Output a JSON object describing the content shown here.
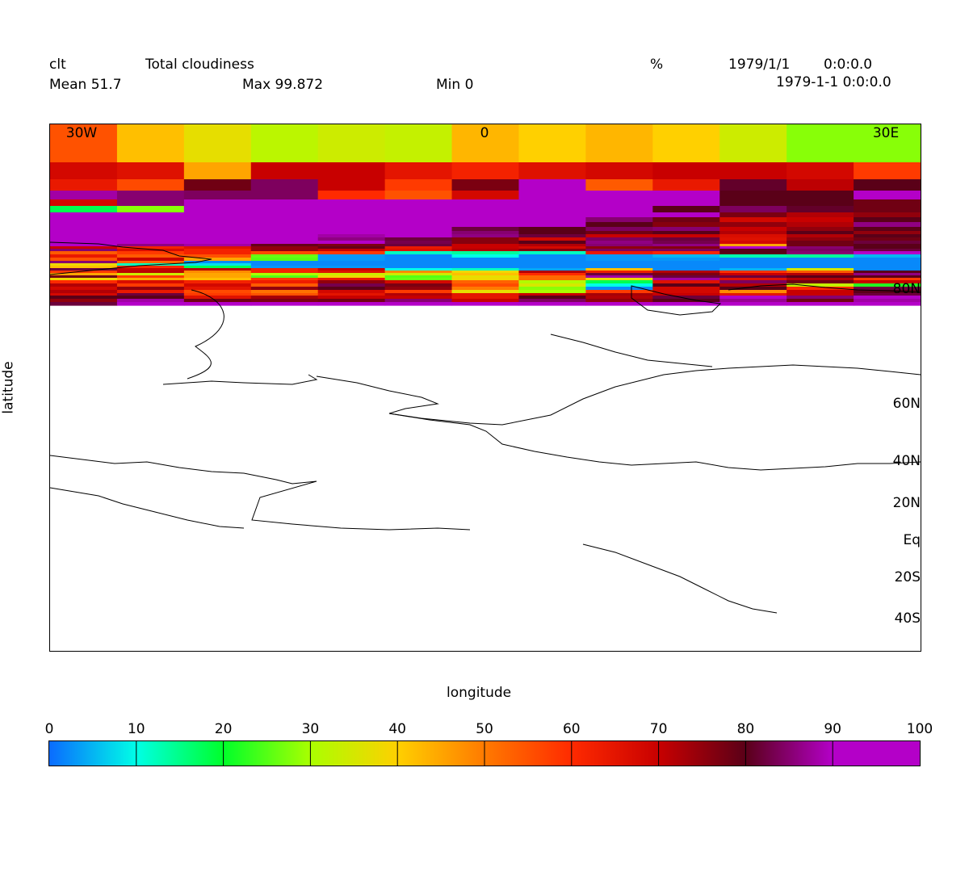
{
  "header": {
    "var_name": "clt",
    "long_name": "Total cloudiness",
    "units": "%",
    "date1": "1979/1/1",
    "time1": "0:0:0.0",
    "date2": "1979-1-1 0:0:0.0",
    "mean": "Mean 51.7",
    "max": "Max 99.872",
    "min": "Min 0"
  },
  "chart_data": {
    "type": "heatmap",
    "xlabel": "longitude",
    "ylabel": "latitude",
    "x_ticks": [
      "30W",
      "0",
      "30E"
    ],
    "y_ticks": [
      "80N",
      "60N",
      "40N",
      "20N",
      "Eq",
      "20S",
      "40S"
    ],
    "colorbar_ticks": [
      "0",
      "10",
      "20",
      "30",
      "40",
      "50",
      "60",
      "70",
      "80",
      "90",
      "100"
    ],
    "colorbar_range": [
      0,
      100
    ],
    "colors": [
      "#0a6bff",
      "#00ffe6",
      "#00ff2a",
      "#aaff00",
      "#ffd000",
      "#ff7a00",
      "#ff2a00",
      "#c80000",
      "#5a0018",
      "#b400c8"
    ],
    "columns": 13,
    "row_heights": [
      47,
      21,
      14,
      11,
      8,
      8,
      6,
      6,
      6,
      5,
      4,
      4,
      4,
      4,
      3,
      3,
      3,
      4,
      4,
      4,
      3,
      3,
      3,
      3,
      3,
      3,
      3,
      3,
      4,
      4,
      4,
      4,
      3,
      4,
      4,
      4
    ],
    "rows": [
      [
        55,
        42,
        37,
        32,
        34,
        33,
        43,
        40,
        43,
        40,
        34,
        28,
        28
      ],
      [
        68,
        66,
        45,
        70,
        70,
        65,
        62,
        66,
        68,
        70,
        70,
        68,
        58
      ],
      [
        64,
        56,
        78,
        84,
        70,
        58,
        77,
        97,
        54,
        64,
        81,
        71,
        80
      ],
      [
        88,
        85,
        84,
        84,
        60,
        55,
        68,
        98,
        97,
        98,
        80,
        80,
        96
      ],
      [
        68,
        85,
        97,
        93,
        97,
        97,
        98,
        98,
        97,
        97,
        80,
        80,
        78
      ],
      [
        18,
        28,
        96,
        97,
        97,
        96,
        97,
        97,
        90,
        80,
        84,
        81,
        78
      ],
      [
        98,
        97,
        96,
        97,
        96,
        98,
        96,
        98,
        97,
        98,
        77,
        72,
        75
      ],
      [
        98,
        97,
        96,
        97,
        96,
        95,
        96,
        98,
        85,
        78,
        68,
        70,
        80
      ],
      [
        97,
        96,
        96,
        95,
        93,
        95,
        96,
        96,
        80,
        76,
        75,
        72,
        86
      ],
      [
        97,
        96,
        95,
        93,
        95,
        95,
        82,
        80,
        84,
        85,
        70,
        75,
        80
      ],
      [
        98,
        95,
        95,
        93,
        93,
        95,
        85,
        80,
        78,
        80,
        72,
        80,
        75
      ],
      [
        95,
        95,
        93,
        92,
        88,
        92,
        86,
        82,
        70,
        70,
        67,
        72,
        80
      ],
      [
        96,
        93,
        95,
        94,
        86,
        82,
        76,
        68,
        84,
        82,
        66,
        75,
        78
      ],
      [
        93,
        91,
        93,
        92,
        90,
        83,
        76,
        80,
        86,
        83,
        68,
        78,
        82
      ],
      [
        90,
        86,
        88,
        79,
        77,
        82,
        70,
        72,
        85,
        86,
        45,
        78,
        80
      ],
      [
        70,
        62,
        66,
        75,
        79,
        64,
        70,
        68,
        75,
        76,
        90,
        85,
        80
      ],
      [
        85,
        67,
        62,
        75,
        70,
        66,
        72,
        76,
        84,
        84,
        80,
        84,
        82
      ],
      [
        54,
        58,
        62,
        56,
        58,
        12,
        14,
        12,
        64,
        61,
        80,
        85,
        92
      ],
      [
        64,
        54,
        55,
        26,
        3,
        2,
        10,
        2,
        3,
        5,
        13,
        14,
        5
      ],
      [
        55,
        70,
        45,
        25,
        3,
        2,
        2,
        2,
        3,
        3,
        2,
        2,
        2
      ],
      [
        85,
        52,
        2,
        2,
        2,
        2,
        2,
        2,
        2,
        2,
        2,
        2,
        2
      ],
      [
        38,
        12,
        8,
        2,
        2,
        2,
        2,
        2,
        2,
        2,
        2,
        2,
        2
      ],
      [
        42,
        60,
        18,
        3,
        3,
        2,
        2,
        2,
        2,
        2,
        2,
        2,
        2
      ],
      [
        82,
        70,
        72,
        62,
        70,
        10,
        12,
        4,
        42,
        2,
        5,
        35,
        2
      ],
      [
        58,
        71,
        48,
        62,
        66,
        48,
        38,
        72,
        63,
        72,
        59,
        54,
        80
      ],
      [
        45,
        34,
        45,
        30,
        34,
        34,
        42,
        60,
        82,
        77,
        70,
        72,
        86
      ],
      [
        78,
        58,
        45,
        25,
        38,
        25,
        37,
        52,
        88,
        82,
        82,
        80,
        80
      ],
      [
        38,
        45,
        42,
        58,
        64,
        26,
        38,
        52,
        38,
        88,
        66,
        72,
        58
      ],
      [
        60,
        67,
        62,
        63,
        75,
        68,
        53,
        31,
        18,
        66,
        84,
        78,
        70
      ],
      [
        72,
        58,
        68,
        54,
        83,
        77,
        56,
        35,
        10,
        80,
        72,
        33,
        22
      ],
      [
        68,
        75,
        65,
        75,
        80,
        75,
        50,
        28,
        2,
        68,
        80,
        60,
        82
      ],
      [
        72,
        64,
        56,
        51,
        68,
        58,
        37,
        30,
        58,
        68,
        48,
        70,
        80
      ],
      [
        68,
        82,
        58,
        55,
        65,
        72,
        65,
        70,
        73,
        70,
        65,
        70,
        82
      ],
      [
        80,
        80,
        66,
        73,
        70,
        70,
        65,
        80,
        72,
        82,
        90,
        85,
        95
      ],
      [
        75,
        88,
        78,
        77,
        78,
        85,
        70,
        84,
        75,
        80,
        87,
        78,
        88
      ],
      [
        82,
        92,
        90,
        90,
        92,
        92,
        92,
        92,
        93,
        92,
        93,
        93,
        92
      ]
    ]
  }
}
